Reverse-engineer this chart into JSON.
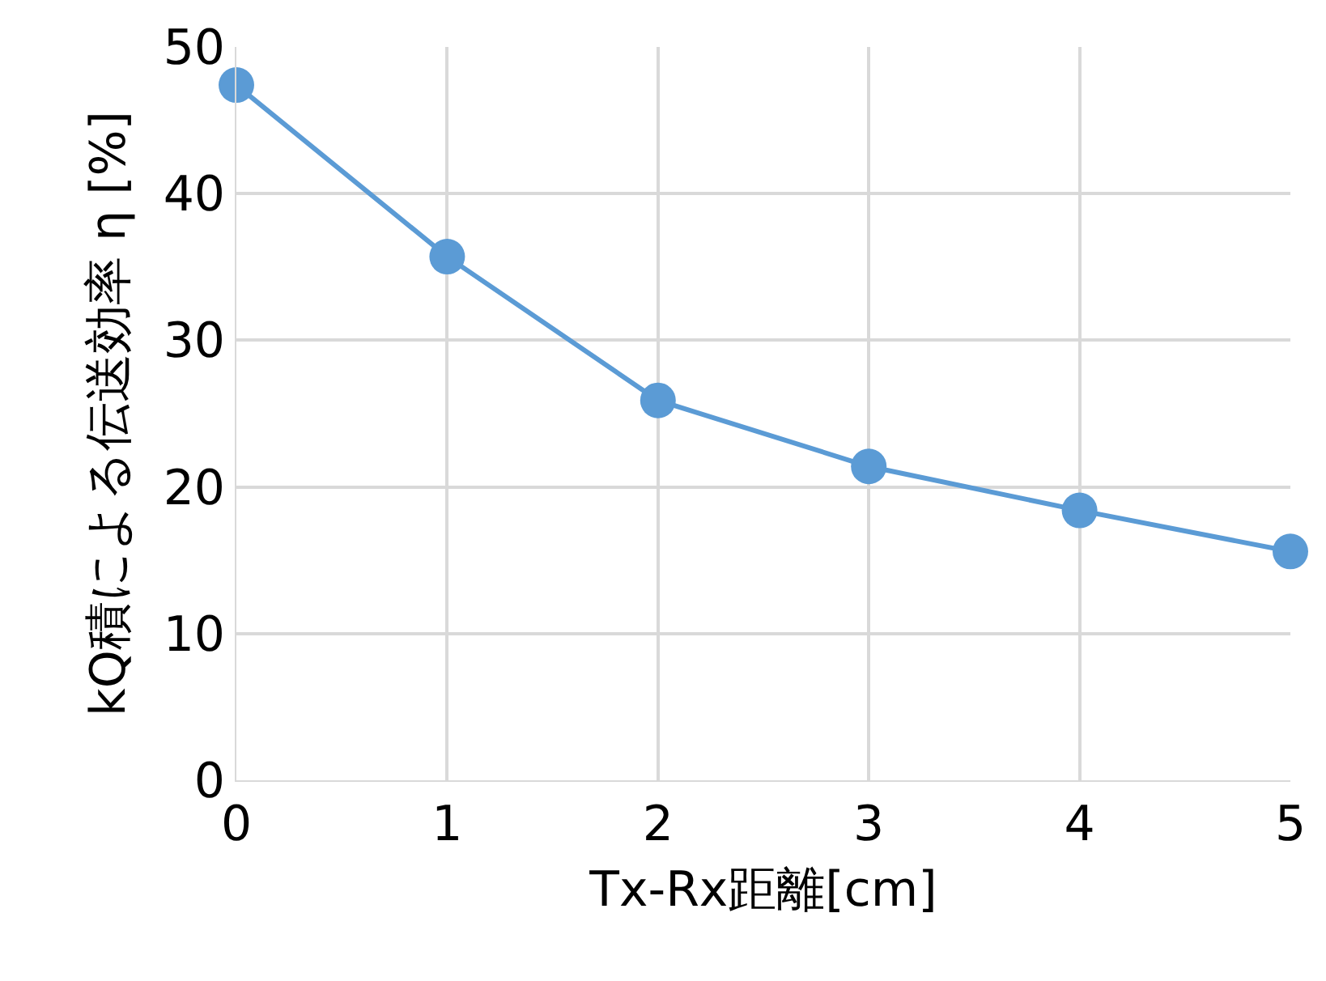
{
  "chart_data": {
    "type": "line",
    "xlabel": "Tx-Rx距離[cm]",
    "ylabel": "kQ積による伝送効率 η [%]",
    "x": [
      0,
      1,
      2,
      3,
      4,
      5
    ],
    "series": [
      {
        "color": "#5b9bd5",
        "values": [
          47.4,
          35.7,
          25.9,
          21.4,
          18.4,
          15.6
        ]
      }
    ],
    "xlim": [
      0,
      5
    ],
    "xticks": [
      0,
      1,
      2,
      3,
      4,
      5
    ],
    "ylim": [
      0,
      50
    ],
    "yticks": [
      0,
      10,
      20,
      30,
      40,
      50
    ],
    "grid": true,
    "marker": "circle",
    "line_style": "solid"
  }
}
